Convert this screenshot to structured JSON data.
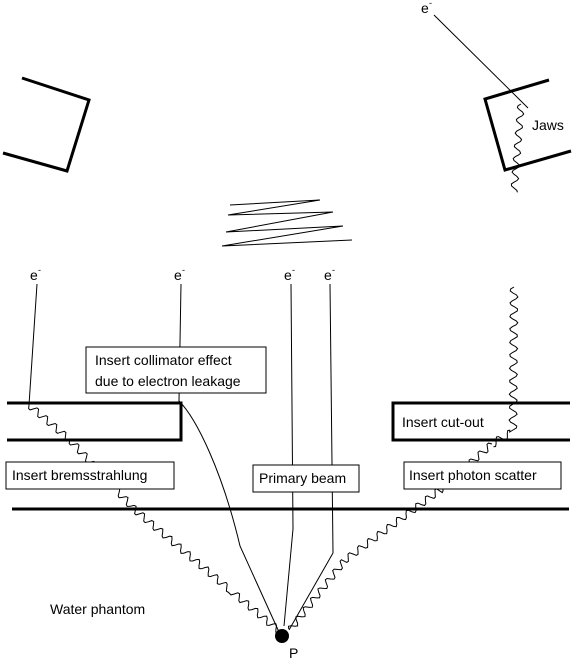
{
  "labels": {
    "jaws": "Jaws",
    "insert_collimator_effect_line1": "Insert collimator effect",
    "insert_collimator_effect_line2": "due to electron leakage",
    "insert_cut_out": "Insert cut-out",
    "insert_bremsstrahlung": "Insert bremsstrahlung",
    "primary_beam": "Primary beam",
    "insert_photon_scatter": "Insert photon scatter",
    "water_phantom": "Water phantom",
    "point": "P"
  },
  "electron_symbol": {
    "base": "e",
    "superscript": "-"
  }
}
